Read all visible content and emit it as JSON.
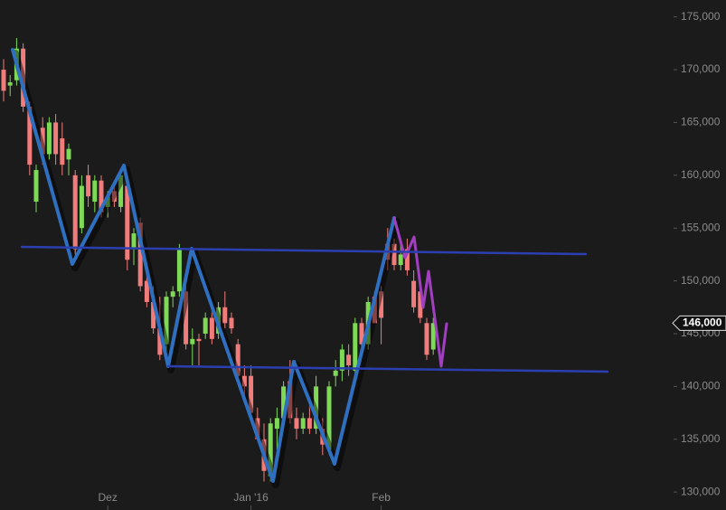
{
  "chart_data": {
    "type": "candlestick",
    "categories": [
      null,
      null,
      null,
      null,
      null,
      null,
      null,
      null,
      null,
      null,
      null,
      null,
      null,
      null,
      null,
      null,
      "Dez",
      null,
      null,
      null,
      null,
      null,
      null,
      null,
      null,
      null,
      null,
      null,
      null,
      null,
      null,
      null,
      null,
      null,
      null,
      null,
      null,
      null,
      "Jan '16",
      null,
      null,
      null,
      null,
      null,
      null,
      null,
      null,
      null,
      null,
      null,
      null,
      null,
      null,
      null,
      null,
      null,
      null,
      null,
      "Feb",
      null,
      null,
      null,
      null,
      null,
      null,
      null,
      null
    ],
    "open": [
      170000,
      168500,
      169000,
      172000,
      166500,
      157500,
      164500,
      162000,
      165000,
      163500,
      161500,
      160000,
      155000,
      160000,
      157500,
      159500,
      157000,
      158500,
      157000,
      159000,
      153000,
      155500,
      150000,
      148000,
      145500,
      144000,
      148500,
      149000,
      149000,
      144000,
      144500,
      145000,
      146500,
      145000,
      147500,
      146500,
      144000,
      141000,
      141000,
      137000,
      135000,
      131500,
      136000,
      137000,
      140500,
      137000,
      136000,
      137000,
      136000,
      136000,
      134000,
      141000,
      141500,
      143000,
      141500,
      146000,
      144000,
      148500,
      149000,
      153500,
      153500,
      151500,
      153000,
      150000,
      149000,
      146000,
      143500
    ],
    "high": [
      171000,
      169500,
      173000,
      172500,
      167000,
      161000,
      165500,
      165500,
      165800,
      165000,
      163000,
      160500,
      160000,
      161000,
      160000,
      160000,
      158500,
      159500,
      160500,
      160000,
      155000,
      156000,
      151000,
      149500,
      148500,
      149000,
      149500,
      153500,
      149500,
      145500,
      145000,
      147000,
      147500,
      148000,
      149000,
      147000,
      144500,
      142000,
      142000,
      138000,
      136500,
      137000,
      138000,
      140500,
      142500,
      138000,
      137500,
      138500,
      141000,
      137000,
      140500,
      142500,
      144000,
      144000,
      146500,
      146500,
      148500,
      149000,
      149500,
      155000,
      154000,
      154000,
      154000,
      151000,
      150000,
      146500,
      146500
    ],
    "low": [
      167000,
      167500,
      168500,
      166000,
      160000,
      156500,
      161000,
      161500,
      161000,
      160000,
      160000,
      152000,
      154500,
      157000,
      156500,
      156000,
      156000,
      157000,
      156500,
      151000,
      151500,
      149000,
      147500,
      145000,
      142500,
      143000,
      147500,
      148500,
      143500,
      142000,
      142000,
      144500,
      144000,
      144500,
      145500,
      145000,
      140500,
      139000,
      137000,
      135000,
      131000,
      131000,
      134000,
      136500,
      136500,
      135000,
      135500,
      135500,
      135500,
      133500,
      133500,
      140000,
      140500,
      141000,
      140500,
      143500,
      143500,
      146000,
      144000,
      151000,
      151000,
      151000,
      150500,
      147000,
      146000,
      142500,
      143000
    ],
    "close": [
      168000,
      168800,
      172000,
      166500,
      161000,
      160500,
      162000,
      165000,
      162000,
      161000,
      162500,
      153000,
      159000,
      158000,
      159500,
      156500,
      158000,
      157500,
      160000,
      152000,
      154500,
      149500,
      148000,
      145500,
      143000,
      148500,
      149000,
      153000,
      144000,
      144500,
      144300,
      146500,
      144500,
      147500,
      146000,
      145500,
      141000,
      140000,
      137500,
      135000,
      132000,
      136500,
      137000,
      140000,
      137000,
      136000,
      137000,
      136000,
      140000,
      134500,
      140000,
      141500,
      143500,
      142000,
      146000,
      144000,
      148000,
      146000,
      146500,
      152000,
      151500,
      152500,
      151000,
      147500,
      146500,
      143000,
      146000
    ],
    "up_color": "#7ed957",
    "down_color": "#f07c7c",
    "ylim": [
      128300,
      176600
    ],
    "yticks": [
      {
        "value": 130000,
        "label": "130,000"
      },
      {
        "value": 135000,
        "label": "135,000"
      },
      {
        "value": 140000,
        "label": "140,000"
      },
      {
        "value": 145000,
        "label": "145,000"
      },
      {
        "value": 150000,
        "label": "150,000"
      },
      {
        "value": 155000,
        "label": "155,000"
      },
      {
        "value": 160000,
        "label": "160,000"
      },
      {
        "value": 165000,
        "label": "165,000"
      },
      {
        "value": 170000,
        "label": "170,000"
      },
      {
        "value": 175000,
        "label": "175,000"
      }
    ],
    "last_price": {
      "value": 146000,
      "label": "146,000"
    }
  }
}
